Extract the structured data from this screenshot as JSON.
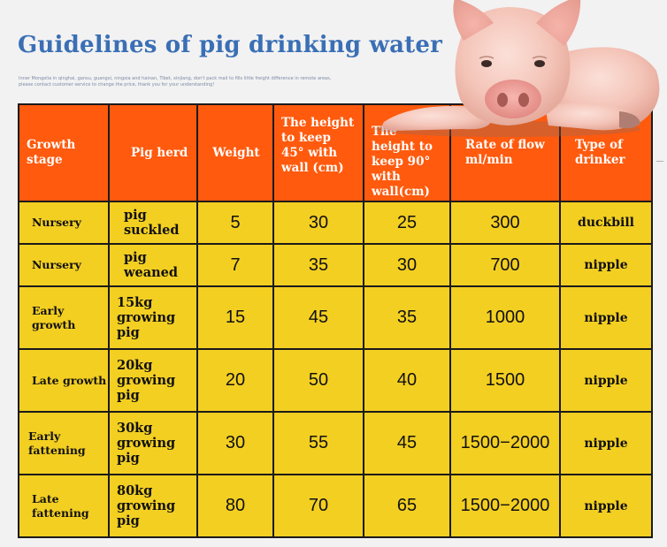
{
  "title": "Guidelines of pig drinking water",
  "note": "Inner Mongolia in qinghai, gansu, guangxi, ningxia and hainan, Tibet, xinjiang, don't pack mail to fills little freight difference in remote areas,\nplease contact customer service to change the price, thank you for your understanding!",
  "table": {
    "headers": [
      "Growth stage",
      "Pig herd",
      "Weight",
      "The height to keep 45° with wall (cm)",
      "The height to keep 90° with wall(cm)",
      "Rate of flow ml/min",
      "Type of drinker"
    ],
    "rows": [
      {
        "stage": "Nursery",
        "herd": "pig suckled",
        "weight": "5",
        "h45": "30",
        "h90": "25",
        "flow": "300",
        "drinker": "duckbill"
      },
      {
        "stage": "Nursery",
        "herd": "pig weaned",
        "weight": "7",
        "h45": "35",
        "h90": "30",
        "flow": "700",
        "drinker": "nipple"
      },
      {
        "stage": "Early growth",
        "herd": "15kg growing pig",
        "weight": "15",
        "h45": "45",
        "h90": "35",
        "flow": "1000",
        "drinker": "nipple"
      },
      {
        "stage": "Late growth",
        "herd": "20kg growing pig",
        "weight": "20",
        "h45": "50",
        "h90": "40",
        "flow": "1500",
        "drinker": "nipple"
      },
      {
        "stage": "Early fattening",
        "herd": "30kg growing pig",
        "weight": "30",
        "h45": "55",
        "h90": "45",
        "flow": "1500−2000",
        "drinker": "nipple"
      },
      {
        "stage": "Late fattening",
        "herd": "80kg growing pig",
        "weight": "80",
        "h45": "70",
        "h90": "65",
        "flow": "1500−2000",
        "drinker": "nipple"
      }
    ]
  },
  "colors": {
    "title": "#3a6fb5",
    "header_bg": "#ff5a0d",
    "cell_bg": "#f3cf22",
    "grid": "#1a1a1a"
  },
  "image": {
    "icon": "piglet-photo"
  }
}
